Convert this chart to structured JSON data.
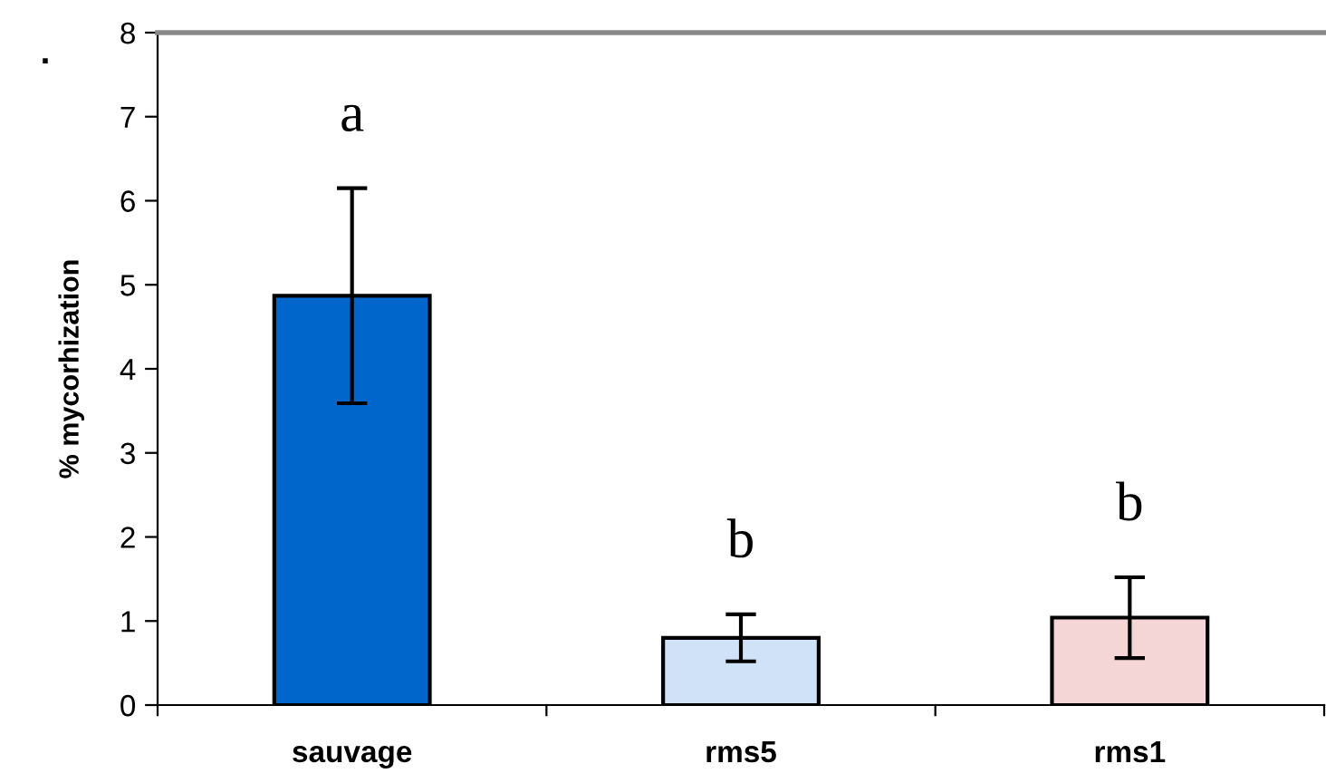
{
  "chart_data": {
    "type": "bar",
    "ylabel": "% mycorhization",
    "categories": [
      "sauvage",
      "rms5",
      "rms1"
    ],
    "values": [
      4.87,
      0.8,
      1.04
    ],
    "colors": [
      "#0066cc",
      "#cfe2f7",
      "#f5d6d6"
    ],
    "errors": [
      1.28,
      0.28,
      0.48
    ],
    "ylim": [
      0,
      8
    ],
    "yticks": [
      0,
      1,
      2,
      3,
      4,
      5,
      6,
      7,
      8
    ],
    "grid": false,
    "legend": false,
    "annotations": [
      "a",
      "b",
      "b",
      "."
    ]
  }
}
